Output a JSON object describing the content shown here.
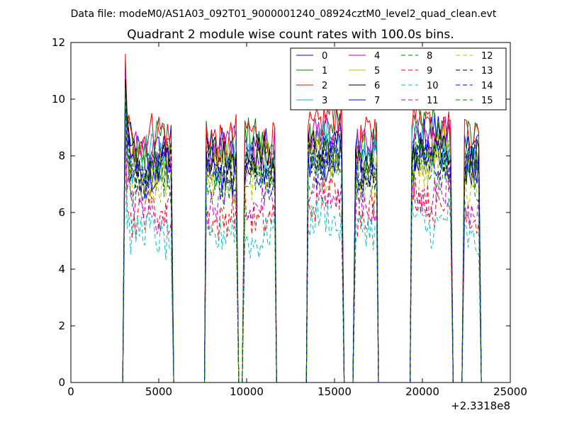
{
  "suptitle": "Data file: modeM0/AS1A03_092T01_9000001240_08924cztM0_level2_quad_clean.evt",
  "chart_data": {
    "type": "line",
    "title": "Quadrant 2 module wise count rates with 100.0s bins.",
    "xlabel": "",
    "ylabel": "",
    "x_offset_label": "+2.3318e8",
    "xlim": [
      0,
      25000
    ],
    "ylim": [
      0,
      12
    ],
    "xticks": [
      0,
      5000,
      10000,
      15000,
      20000,
      25000
    ],
    "xtick_labels": [
      "0",
      "5000",
      "10000",
      "15000",
      "20000",
      "25000"
    ],
    "yticks": [
      0,
      2,
      4,
      6,
      8,
      10,
      12
    ],
    "ytick_labels": [
      "0",
      "2",
      "4",
      "6",
      "8",
      "10",
      "12"
    ],
    "grid": false,
    "legend": {
      "placement": "upper right",
      "columns": 4
    },
    "segments": [
      {
        "start": 3100,
        "end": 5700
      },
      {
        "start": 7700,
        "end": 9400
      },
      {
        "start": 9900,
        "end": 11600
      },
      {
        "start": 13500,
        "end": 15400
      },
      {
        "start": 16200,
        "end": 17400
      },
      {
        "start": 19400,
        "end": 21600
      },
      {
        "start": 22400,
        "end": 23200
      }
    ],
    "zero_gaps": [
      {
        "start": 5900,
        "end": 7600
      },
      {
        "start": 11700,
        "end": 13400
      },
      {
        "start": 17500,
        "end": 19300
      }
    ],
    "series": [
      {
        "name": "0",
        "color": "#0000ff",
        "dash": "solid",
        "level": 8.2
      },
      {
        "name": "1",
        "color": "#008000",
        "dash": "solid",
        "level": 8.4
      },
      {
        "name": "2",
        "color": "#ff0000",
        "dash": "solid",
        "level": 8.7
      },
      {
        "name": "3",
        "color": "#00bfbf",
        "dash": "solid",
        "level": 7.9
      },
      {
        "name": "4",
        "color": "#bf00bf",
        "dash": "solid",
        "level": 8.1
      },
      {
        "name": "5",
        "color": "#bfbf00",
        "dash": "solid",
        "level": 7.7
      },
      {
        "name": "6",
        "color": "#000000",
        "dash": "solid",
        "level": 7.8
      },
      {
        "name": "7",
        "color": "#0000ff",
        "dash": "solid",
        "level": 7.4
      },
      {
        "name": "8",
        "color": "#008000",
        "dash": "dashed",
        "level": 7.0
      },
      {
        "name": "9",
        "color": "#ff0000",
        "dash": "dashed",
        "level": 5.9
      },
      {
        "name": "10",
        "color": "#00bfbf",
        "dash": "dashed",
        "level": 5.2
      },
      {
        "name": "11",
        "color": "#bf00bf",
        "dash": "dashed",
        "level": 6.2
      },
      {
        "name": "12",
        "color": "#bfbf00",
        "dash": "dashed",
        "level": 7.1
      },
      {
        "name": "13",
        "color": "#000000",
        "dash": "dashed",
        "level": 7.6
      },
      {
        "name": "14",
        "color": "#0000ff",
        "dash": "dashed",
        "level": 7.3
      },
      {
        "name": "15",
        "color": "#008000",
        "dash": "dashed",
        "level": 7.5
      }
    ]
  }
}
